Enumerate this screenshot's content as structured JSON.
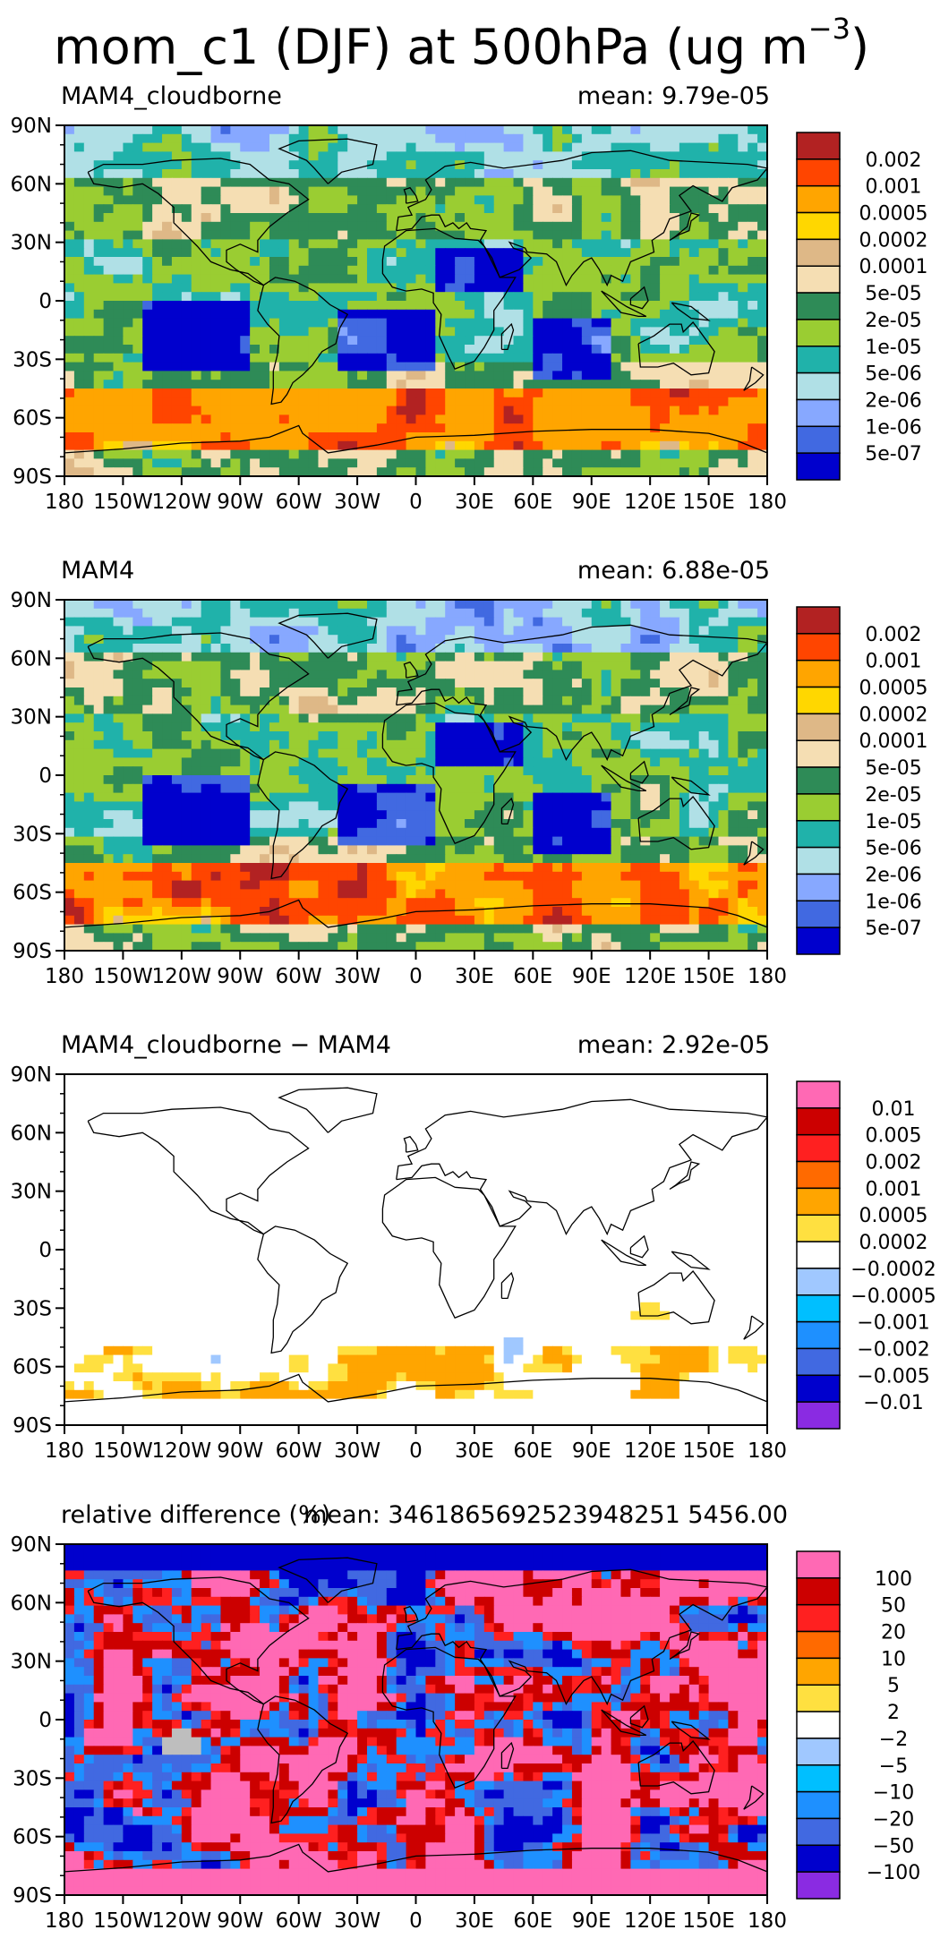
{
  "title": {
    "prefix": "mom_c1 (DJF) at 500hPa (ug m",
    "sup": "−3",
    "suffix": ")"
  },
  "lat_labels": [
    "90N",
    "60N",
    "30N",
    "0",
    "30S",
    "60S",
    "90S"
  ],
  "lon_labels": [
    "180",
    "150W",
    "120W",
    "90W",
    "60W",
    "30W",
    "0",
    "30E",
    "60E",
    "90E",
    "120E",
    "150E",
    "180"
  ],
  "panels": [
    {
      "name": "MAM4_cloudborne",
      "left_title": "MAM4_cloudborne",
      "right_title": "mean:  9.79e-05",
      "colorbar": {
        "colors": [
          "#b22222",
          "#ff4500",
          "#ffa500",
          "#ffd700",
          "#deb887",
          "#f5deb3",
          "#2e8b57",
          "#9acd32",
          "#20b2aa",
          "#b0e0e6",
          "#87a8ff",
          "#4169e1",
          "#0000cd"
        ],
        "labels": [
          "0.002",
          "0.001",
          "0.0005",
          "0.0002",
          "0.0001",
          "5e-05",
          "2e-05",
          "1e-05",
          "5e-06",
          "2e-06",
          "1e-06",
          "5e-07"
        ]
      }
    },
    {
      "name": "MAM4",
      "left_title": "MAM4",
      "right_title": "mean:  6.88e-05",
      "colorbar": {
        "colors": [
          "#b22222",
          "#ff4500",
          "#ffa500",
          "#ffd700",
          "#deb887",
          "#f5deb3",
          "#2e8b57",
          "#9acd32",
          "#20b2aa",
          "#b0e0e6",
          "#87a8ff",
          "#4169e1",
          "#0000cd"
        ],
        "labels": [
          "0.002",
          "0.001",
          "0.0005",
          "0.0002",
          "0.0001",
          "5e-05",
          "2e-05",
          "1e-05",
          "5e-06",
          "2e-06",
          "1e-06",
          "5e-07"
        ]
      }
    },
    {
      "name": "difference",
      "left_title": "MAM4_cloudborne − MAM4",
      "right_title": "mean:  2.92e-05",
      "colorbar": {
        "colors": [
          "#ff69b4",
          "#cc0000",
          "#ff2020",
          "#ff6a00",
          "#ffa500",
          "#ffe040",
          "#ffffff",
          "#a0c8ff",
          "#00bfff",
          "#1e90ff",
          "#4169e1",
          "#0000cd",
          "#8a2be2"
        ],
        "labels": [
          "0.01",
          "0.005",
          "0.002",
          "0.001",
          "0.0005",
          "0.0002",
          "−0.0002",
          "−0.0005",
          "−0.001",
          "−0.002",
          "−0.005",
          "−0.01"
        ]
      }
    },
    {
      "name": "relative-difference",
      "left_title": "relative difference (%)",
      "right_title": "mean: 3461865692523948251 5456.00",
      "colorbar": {
        "colors": [
          "#ff69b4",
          "#cc0000",
          "#ff2020",
          "#ff6a00",
          "#ffa500",
          "#ffe040",
          "#ffffff",
          "#a0c8ff",
          "#00bfff",
          "#1e90ff",
          "#4169e1",
          "#0000cd",
          "#8a2be2"
        ],
        "labels": [
          "100",
          "50",
          "20",
          "10",
          "5",
          "2",
          "−2",
          "−5",
          "−10",
          "−20",
          "−50",
          "−100"
        ]
      }
    }
  ]
}
